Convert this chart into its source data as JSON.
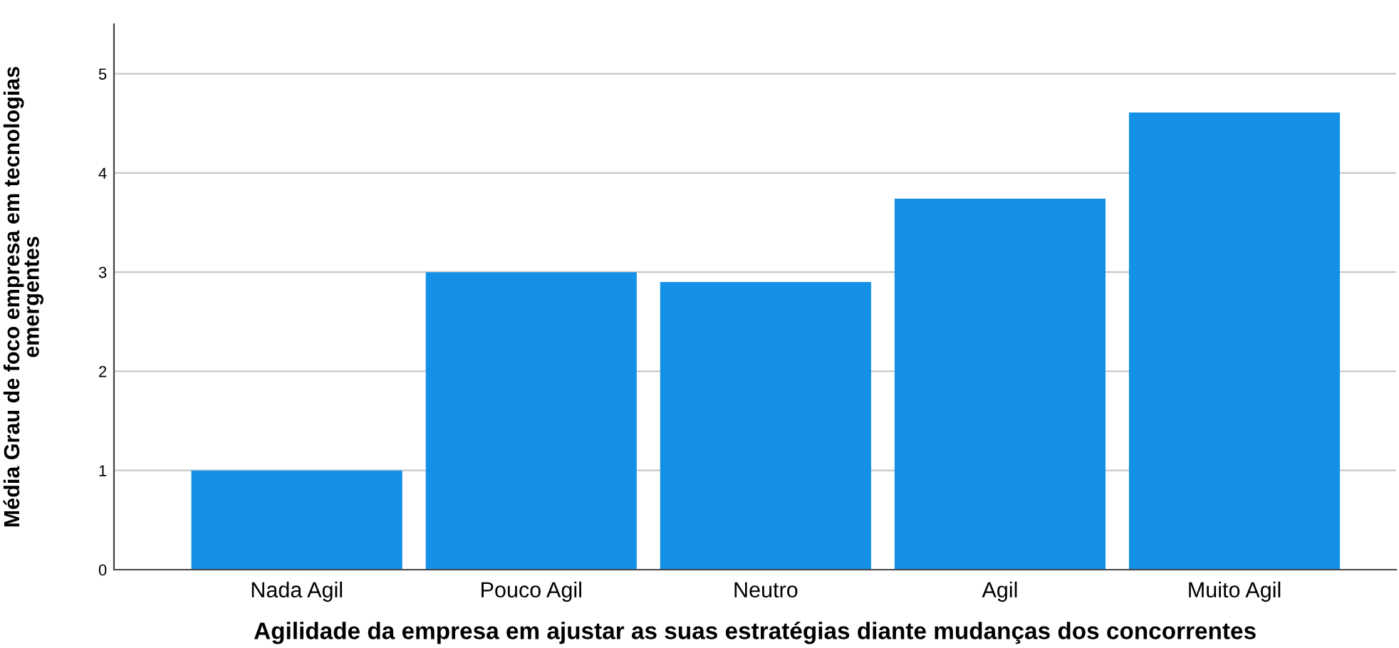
{
  "chart_data": {
    "type": "bar",
    "xlabel": "Agilidade da empresa em ajustar as suas estratégias diante mudanças dos concorrentes",
    "ylabel": "Média Grau de foco empresa em tecnologias\nemergentes",
    "categories": [
      "Nada Agil",
      "Pouco Agil",
      "Neutro",
      "Agil",
      "Muito Agil"
    ],
    "values": [
      1.0,
      3.0,
      2.9,
      3.74,
      4.61
    ],
    "color": "#1491e6",
    "ylim": [
      0,
      5.5
    ],
    "yticks": [
      0,
      1,
      2,
      3,
      4,
      5
    ],
    "grid": "y"
  }
}
